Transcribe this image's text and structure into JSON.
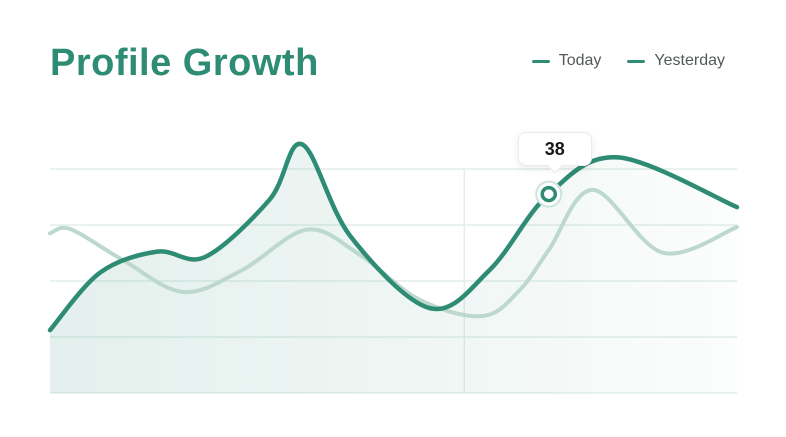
{
  "header": {
    "title": "Profile Growth"
  },
  "legend": {
    "items": [
      {
        "label": "Today",
        "swatch_color": "#2e8b74"
      },
      {
        "label": "Yesterday",
        "swatch_color": "#2e8b74"
      }
    ]
  },
  "colors": {
    "accent": "#2e8b74",
    "secondary_line": "#bdd8cd",
    "gridline": "#e2eee9",
    "area_fill_start": "rgba(46,139,116,0.13)",
    "area_fill_mid": "rgba(46,139,116,0.07)",
    "area_fill_end": "rgba(46,139,116,0.015)",
    "marker_halo": "#cde3db"
  },
  "chart_data": {
    "type": "line",
    "title": "Profile Growth",
    "subtitle": "",
    "xlabel": "",
    "ylabel": "",
    "x_unit": "percent_of_plot_width",
    "axis_labels_visible": false,
    "ylim": [
      0,
      50
    ],
    "grid": {
      "horizontal_lines": 5,
      "vertical_lines": 1,
      "vertical_line_x_pct": 60.3
    },
    "legend_position": "top-right",
    "series": [
      {
        "name": "Today",
        "color": "#2e8b74",
        "stroke_width": 4.5,
        "area_fill": true,
        "points": [
          [
            0,
            12
          ],
          [
            7.3,
            23
          ],
          [
            15.6,
            27
          ],
          [
            22.6,
            26
          ],
          [
            32,
            37
          ],
          [
            36.7,
            47.5
          ],
          [
            43.7,
            30
          ],
          [
            55.3,
            16.2
          ],
          [
            64,
            23.5
          ],
          [
            72.6,
            38
          ],
          [
            82.7,
            45
          ],
          [
            100,
            35.5
          ]
        ]
      },
      {
        "name": "Yesterday",
        "color": "#bdd8cd",
        "stroke_width": 4,
        "area_fill": false,
        "points": [
          [
            0,
            30.5
          ],
          [
            3,
            31.3
          ],
          [
            10.6,
            25.4
          ],
          [
            19.4,
            19.3
          ],
          [
            28,
            23.5
          ],
          [
            37.4,
            31.2
          ],
          [
            45.1,
            26.4
          ],
          [
            53.8,
            17.8
          ],
          [
            63,
            14.7
          ],
          [
            68.4,
            19.7
          ],
          [
            72.6,
            27.3
          ],
          [
            79,
            38.8
          ],
          [
            89.2,
            26.8
          ],
          [
            100,
            31.7
          ]
        ]
      }
    ],
    "highlight": {
      "series": "Today",
      "x_pct": 72.6,
      "value": 38,
      "tooltip": "38"
    }
  }
}
